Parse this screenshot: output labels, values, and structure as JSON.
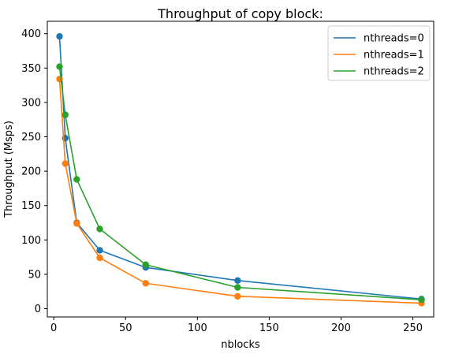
{
  "chart_data": {
    "type": "line",
    "title": "Throughput of copy block:",
    "xlabel": "nblocks",
    "ylabel": "Throughput (Msps)",
    "xlim": [
      -4.5,
      264.5
    ],
    "ylim": [
      -12,
      418
    ],
    "xticks": [
      0,
      50,
      100,
      150,
      200,
      250
    ],
    "yticks": [
      0,
      50,
      100,
      150,
      200,
      250,
      300,
      350,
      400
    ],
    "grid": false,
    "legend_position": "top-right",
    "x": [
      4,
      8,
      16,
      32,
      64,
      128,
      256
    ],
    "series": [
      {
        "name": "nthreads=0",
        "color": "#1f77b4",
        "values": [
          396,
          248,
          125,
          85,
          60,
          41,
          14
        ]
      },
      {
        "name": "nthreads=1",
        "color": "#ff7f0e",
        "values": [
          334,
          211,
          124,
          74,
          37,
          18,
          8
        ]
      },
      {
        "name": "nthreads=2",
        "color": "#2ca02c",
        "values": [
          352,
          282,
          188,
          116,
          64,
          31,
          13
        ]
      }
    ]
  }
}
